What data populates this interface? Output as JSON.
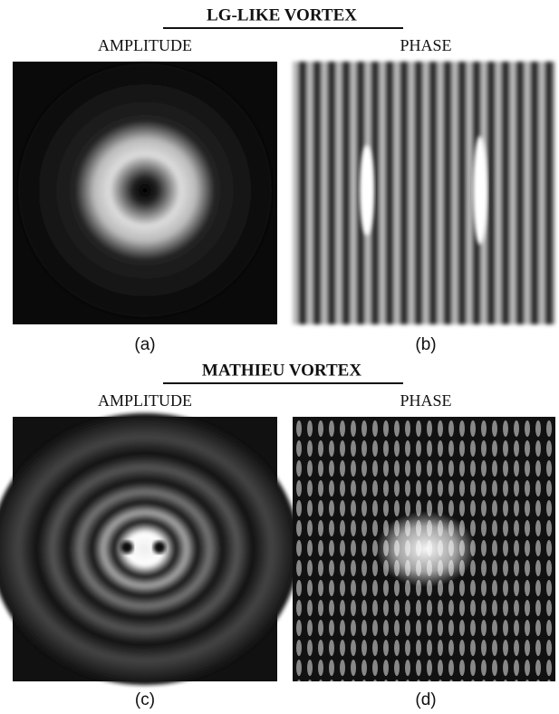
{
  "sections": [
    {
      "title": "LG-LIKE VORTEX",
      "panels": [
        {
          "heading": "AMPLITUDE",
          "caption": "(a)"
        },
        {
          "heading": "PHASE",
          "caption": "(b)"
        }
      ]
    },
    {
      "title": "MATHIEU VORTEX",
      "panels": [
        {
          "heading": "AMPLITUDE",
          "caption": "(c)"
        },
        {
          "heading": "PHASE",
          "caption": "(d)"
        }
      ]
    }
  ]
}
